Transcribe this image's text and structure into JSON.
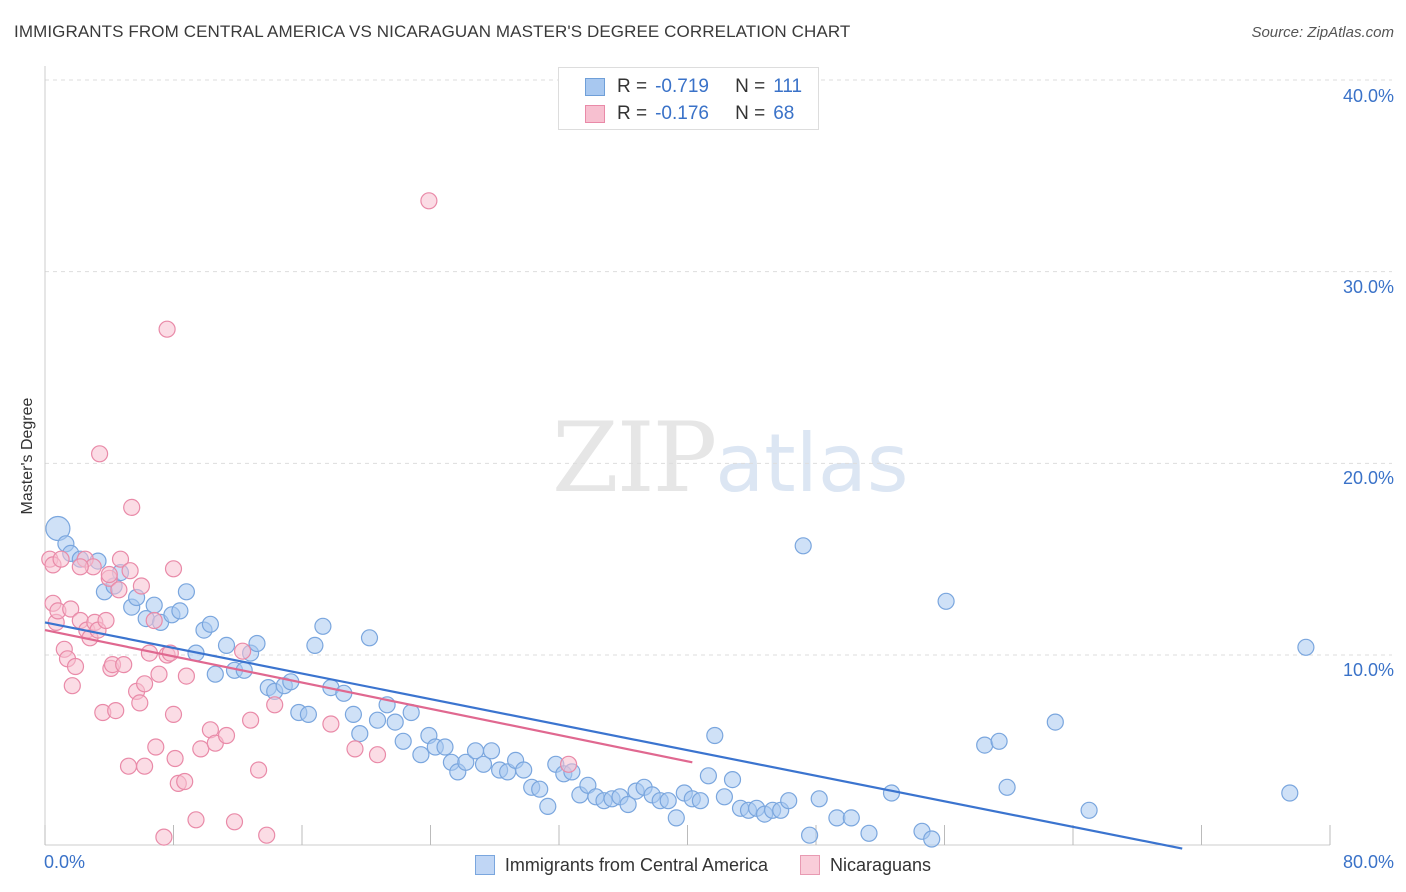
{
  "header": {
    "title": "IMMIGRANTS FROM CENTRAL AMERICA VS NICARAGUAN MASTER'S DEGREE CORRELATION CHART",
    "source": "Source: ZipAtlas.com"
  },
  "watermark": {
    "zip": "ZIP",
    "atlas": "atlas"
  },
  "legend_top": {
    "rows": [
      {
        "r_label": "R =",
        "r_value": "-0.719",
        "n_label": "N =",
        "n_value": "111",
        "color": "#a8c8f0",
        "border": "#6f9fd8"
      },
      {
        "r_label": "R =",
        "r_value": "-0.176",
        "n_label": "N =",
        "n_value": "68",
        "color": "#f7c0d0",
        "border": "#e98aa8"
      }
    ]
  },
  "legend_bottom": {
    "items": [
      {
        "label": "Immigrants from Central America",
        "color": "#c0d6f5",
        "border": "#7aa6de"
      },
      {
        "label": "Nicaraguans",
        "color": "#f9cdd9",
        "border": "#e89ab2"
      }
    ]
  },
  "axes": {
    "ylabel": "Master's Degree",
    "x_min_label": "0.0%",
    "x_max_label": "80.0%",
    "y_tick_labels": [
      "10.0%",
      "20.0%",
      "30.0%",
      "40.0%"
    ]
  },
  "chart_data": {
    "type": "scatter",
    "xlim": [
      0,
      80
    ],
    "ylim": [
      0,
      40
    ],
    "y_ticks": [
      10,
      20,
      30,
      40
    ],
    "grid": true,
    "legend_placement": "top-center",
    "series": [
      {
        "name": "Immigrants from Central America",
        "color": "#7aa6de",
        "fill": "#a8c8f0",
        "R": -0.719,
        "N": 111,
        "trend": {
          "x": [
            0,
            70.8
          ],
          "y": [
            11.7,
            -0.1
          ]
        },
        "points": [
          [
            0.8,
            16.6
          ],
          [
            1.3,
            15.8
          ],
          [
            1.6,
            15.3
          ],
          [
            2.2,
            15.0
          ],
          [
            3.3,
            14.9
          ],
          [
            3.7,
            13.3
          ],
          [
            4.3,
            13.6
          ],
          [
            4.7,
            14.3
          ],
          [
            5.4,
            12.5
          ],
          [
            5.7,
            13.0
          ],
          [
            6.3,
            11.9
          ],
          [
            6.8,
            12.6
          ],
          [
            7.2,
            11.7
          ],
          [
            7.9,
            12.1
          ],
          [
            8.4,
            12.3
          ],
          [
            8.8,
            13.3
          ],
          [
            9.4,
            10.1
          ],
          [
            9.9,
            11.3
          ],
          [
            10.3,
            11.6
          ],
          [
            10.6,
            9.0
          ],
          [
            11.3,
            10.5
          ],
          [
            11.8,
            9.2
          ],
          [
            12.4,
            9.2
          ],
          [
            12.8,
            10.1
          ],
          [
            13.2,
            10.6
          ],
          [
            13.9,
            8.3
          ],
          [
            14.3,
            8.1
          ],
          [
            14.9,
            8.4
          ],
          [
            15.3,
            8.6
          ],
          [
            15.8,
            7.0
          ],
          [
            16.4,
            6.9
          ],
          [
            16.8,
            10.5
          ],
          [
            17.3,
            11.5
          ],
          [
            17.8,
            8.3
          ],
          [
            18.6,
            8.0
          ],
          [
            19.2,
            6.9
          ],
          [
            19.6,
            5.9
          ],
          [
            20.2,
            10.9
          ],
          [
            20.7,
            6.6
          ],
          [
            21.3,
            7.4
          ],
          [
            21.8,
            6.5
          ],
          [
            22.3,
            5.5
          ],
          [
            22.8,
            7.0
          ],
          [
            23.4,
            4.8
          ],
          [
            23.9,
            5.8
          ],
          [
            24.3,
            5.2
          ],
          [
            24.9,
            5.2
          ],
          [
            25.3,
            4.4
          ],
          [
            25.7,
            3.9
          ],
          [
            26.2,
            4.4
          ],
          [
            26.8,
            5.0
          ],
          [
            27.3,
            4.3
          ],
          [
            27.8,
            5.0
          ],
          [
            28.3,
            4.0
          ],
          [
            28.8,
            3.9
          ],
          [
            29.3,
            4.5
          ],
          [
            29.8,
            4.0
          ],
          [
            30.3,
            3.1
          ],
          [
            30.8,
            3.0
          ],
          [
            31.3,
            2.1
          ],
          [
            31.8,
            4.3
          ],
          [
            32.3,
            3.8
          ],
          [
            32.8,
            3.9
          ],
          [
            33.3,
            2.7
          ],
          [
            33.8,
            3.2
          ],
          [
            34.3,
            2.6
          ],
          [
            34.8,
            2.4
          ],
          [
            35.3,
            2.5
          ],
          [
            35.8,
            2.6
          ],
          [
            36.3,
            2.2
          ],
          [
            36.8,
            2.9
          ],
          [
            37.3,
            3.1
          ],
          [
            37.8,
            2.7
          ],
          [
            38.3,
            2.4
          ],
          [
            38.8,
            2.4
          ],
          [
            39.3,
            1.5
          ],
          [
            39.8,
            2.8
          ],
          [
            40.3,
            2.5
          ],
          [
            40.8,
            2.4
          ],
          [
            41.3,
            3.7
          ],
          [
            41.7,
            5.8
          ],
          [
            42.3,
            2.6
          ],
          [
            42.8,
            3.5
          ],
          [
            43.3,
            2.0
          ],
          [
            43.8,
            1.9
          ],
          [
            44.3,
            2.0
          ],
          [
            44.8,
            1.7
          ],
          [
            45.3,
            1.9
          ],
          [
            45.8,
            1.9
          ],
          [
            46.3,
            2.4
          ],
          [
            47.2,
            15.7
          ],
          [
            47.6,
            0.6
          ],
          [
            48.2,
            2.5
          ],
          [
            49.3,
            1.5
          ],
          [
            50.2,
            1.5
          ],
          [
            51.3,
            0.7
          ],
          [
            52.7,
            2.8
          ],
          [
            54.6,
            0.8
          ],
          [
            56.1,
            12.8
          ],
          [
            55.2,
            0.4
          ],
          [
            58.5,
            5.3
          ],
          [
            59.4,
            5.5
          ],
          [
            59.9,
            3.1
          ],
          [
            62.9,
            6.5
          ],
          [
            65.0,
            1.9
          ],
          [
            77.5,
            2.8
          ],
          [
            78.5,
            10.4
          ]
        ]
      },
      {
        "name": "Nicaraguans",
        "color": "#e98aa8",
        "fill": "#f7c0d0",
        "R": -0.176,
        "N": 68,
        "trend": {
          "x": [
            0,
            40.3
          ],
          "y": [
            11.3,
            4.4
          ]
        },
        "points": [
          [
            0.3,
            15.0
          ],
          [
            0.5,
            14.7
          ],
          [
            0.5,
            12.7
          ],
          [
            0.7,
            11.7
          ],
          [
            0.8,
            12.3
          ],
          [
            1.0,
            15.0
          ],
          [
            1.2,
            10.3
          ],
          [
            1.4,
            9.8
          ],
          [
            1.6,
            12.4
          ],
          [
            1.7,
            8.4
          ],
          [
            1.9,
            9.4
          ],
          [
            2.2,
            11.8
          ],
          [
            2.5,
            15.0
          ],
          [
            2.6,
            11.3
          ],
          [
            2.8,
            10.9
          ],
          [
            3.0,
            14.6
          ],
          [
            3.1,
            11.7
          ],
          [
            3.3,
            11.3
          ],
          [
            3.6,
            7.0
          ],
          [
            3.8,
            11.8
          ],
          [
            4.0,
            14.0
          ],
          [
            4.1,
            9.3
          ],
          [
            4.2,
            9.5
          ],
          [
            4.4,
            7.1
          ],
          [
            4.6,
            13.4
          ],
          [
            4.7,
            15.0
          ],
          [
            4.9,
            9.5
          ],
          [
            5.2,
            4.2
          ],
          [
            5.3,
            14.4
          ],
          [
            5.4,
            17.7
          ],
          [
            5.7,
            8.1
          ],
          [
            5.9,
            7.5
          ],
          [
            6.0,
            13.6
          ],
          [
            6.2,
            8.5
          ],
          [
            6.2,
            4.2
          ],
          [
            6.5,
            10.1
          ],
          [
            6.8,
            11.8
          ],
          [
            6.9,
            5.2
          ],
          [
            7.1,
            9.0
          ],
          [
            7.4,
            0.5
          ],
          [
            7.6,
            10.0
          ],
          [
            7.8,
            10.1
          ],
          [
            8.0,
            6.9
          ],
          [
            8.1,
            4.6
          ],
          [
            8.3,
            3.3
          ],
          [
            8.7,
            3.4
          ],
          [
            8.8,
            8.9
          ],
          [
            9.4,
            1.4
          ],
          [
            9.7,
            5.1
          ],
          [
            10.3,
            6.1
          ],
          [
            10.6,
            5.4
          ],
          [
            11.3,
            5.8
          ],
          [
            11.8,
            1.3
          ],
          [
            12.3,
            10.2
          ],
          [
            12.8,
            6.6
          ],
          [
            13.3,
            4.0
          ],
          [
            13.8,
            0.6
          ],
          [
            14.3,
            7.4
          ],
          [
            17.8,
            6.4
          ],
          [
            19.3,
            5.1
          ],
          [
            20.7,
            4.8
          ],
          [
            23.9,
            33.7
          ],
          [
            32.6,
            4.3
          ],
          [
            8.0,
            14.5
          ],
          [
            7.6,
            27.0
          ],
          [
            3.4,
            20.5
          ],
          [
            4.0,
            14.2
          ],
          [
            2.2,
            14.6
          ]
        ]
      }
    ]
  }
}
